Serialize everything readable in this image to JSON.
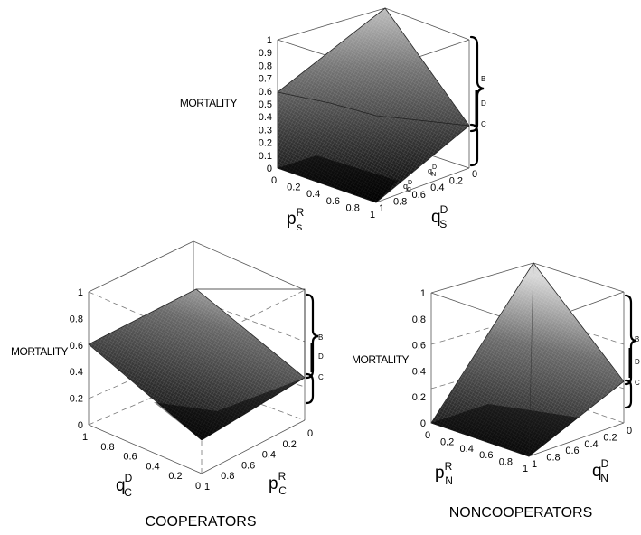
{
  "chart_data": [
    {
      "type": "surface",
      "panel": "top",
      "zlabel": "MORTALITY",
      "x_axis": {
        "label": "p",
        "sup": "R",
        "sub": "s",
        "ticks": [
          "0",
          "0.2",
          "0.4",
          "0.6",
          "0.8",
          "1"
        ],
        "range": [
          0,
          1
        ]
      },
      "y_axis": {
        "label": "q",
        "sup": "D",
        "sub": "S",
        "ticks": [
          "0",
          "0.2",
          "0.4",
          "0.6",
          "0.8",
          "1"
        ],
        "range": [
          0,
          1
        ]
      },
      "z_axis": {
        "ticks": [
          "0",
          "0.1",
          "0.2",
          "0.3",
          "0.4",
          "0.5",
          "0.6",
          "0.7",
          "0.8",
          "0.9",
          "1"
        ],
        "range": [
          0,
          1
        ]
      },
      "corner_values": {
        "p0_q0": 0.0,
        "p1_q0": 0.0,
        "p0_q1": 0.6,
        "p1_q1": 1.0
      },
      "annotations": [
        {
          "text": "q",
          "sup": "D",
          "sub": "C"
        },
        {
          "text": "q",
          "sup": "D",
          "sub": "N"
        }
      ],
      "brace_labels": [
        "B",
        "D",
        "C"
      ],
      "caption": ""
    },
    {
      "type": "surface",
      "panel": "bottom-left",
      "zlabel": "MORTALITY",
      "x_axis": {
        "label": "q",
        "sup": "D",
        "sub": "C",
        "ticks": [
          "0",
          "0.2",
          "0.4",
          "0.6",
          "0.8",
          "1"
        ],
        "range": [
          0,
          1
        ]
      },
      "y_axis": {
        "label": "p",
        "sup": "R",
        "sub": "C",
        "ticks": [
          "0",
          "0.2",
          "0.4",
          "0.6",
          "0.8",
          "1"
        ],
        "range": [
          0,
          1
        ]
      },
      "z_axis": {
        "ticks": [
          "0",
          "0.2",
          "0.4",
          "0.6",
          "0.8",
          "1"
        ],
        "range": [
          0,
          1
        ]
      },
      "corner_values": {
        "q1_p0": 0.6,
        "q0_p0": 0.0,
        "q1_p1": 1.0,
        "q0_p1": 0.32
      },
      "brace_labels": [
        "B",
        "D",
        "C"
      ],
      "caption": "COOPERATORS"
    },
    {
      "type": "surface",
      "panel": "bottom-right",
      "zlabel": "MORTALITY",
      "x_axis": {
        "label": "p",
        "sup": "R",
        "sub": "N",
        "ticks": [
          "0",
          "0.2",
          "0.4",
          "0.6",
          "0.8",
          "1"
        ],
        "range": [
          0,
          1
        ]
      },
      "y_axis": {
        "label": "q",
        "sup": "D",
        "sub": "N",
        "ticks": [
          "0",
          "0.2",
          "0.4",
          "0.6",
          "0.8",
          "1"
        ],
        "range": [
          0,
          1
        ]
      },
      "z_axis": {
        "ticks": [
          "0",
          "0.2",
          "0.4",
          "0.6",
          "0.8",
          "1"
        ],
        "range": [
          0,
          1
        ]
      },
      "corner_values": {
        "p0_q0": 0.0,
        "p1_q0": 0.32,
        "p0_q1": 0.0,
        "p1_q1": 1.0
      },
      "brace_labels": [
        "B",
        "D",
        "C"
      ],
      "caption": "NONCOOPERATORS"
    }
  ],
  "colors": {
    "surface_dark": "#0a0a0a",
    "surface_light": "#cfcfcf",
    "mesh": "#ffffff",
    "frame": "#555555"
  }
}
